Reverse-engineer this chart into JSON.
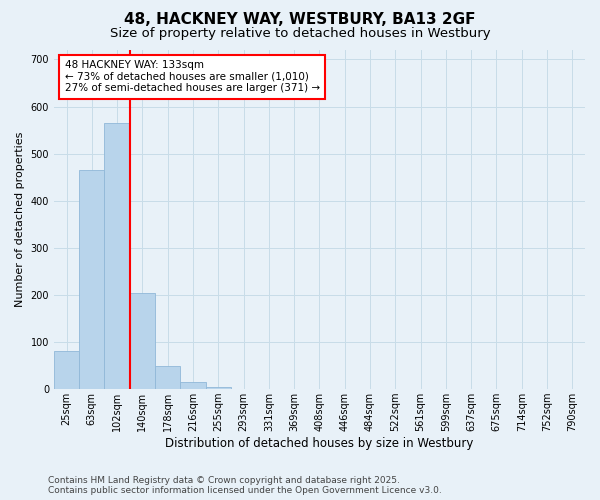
{
  "title1": "48, HACKNEY WAY, WESTBURY, BA13 2GF",
  "title2": "Size of property relative to detached houses in Westbury",
  "xlabel": "Distribution of detached houses by size in Westbury",
  "ylabel": "Number of detached properties",
  "categories": [
    "25sqm",
    "63sqm",
    "102sqm",
    "140sqm",
    "178sqm",
    "216sqm",
    "255sqm",
    "293sqm",
    "331sqm",
    "369sqm",
    "408sqm",
    "446sqm",
    "484sqm",
    "522sqm",
    "561sqm",
    "599sqm",
    "637sqm",
    "675sqm",
    "714sqm",
    "752sqm",
    "790sqm"
  ],
  "values": [
    80,
    465,
    565,
    205,
    50,
    15,
    5,
    0,
    0,
    0,
    0,
    0,
    0,
    0,
    0,
    0,
    0,
    0,
    0,
    0,
    0
  ],
  "bar_color": "#b8d4eb",
  "bar_edge_color": "#90b8d8",
  "grid_color": "#c8dce8",
  "background_color": "#e8f1f8",
  "vline_color": "red",
  "vline_position": 3.0,
  "annotation_text_line1": "48 HACKNEY WAY: 133sqm",
  "annotation_text_line2": "← 73% of detached houses are smaller (1,010)",
  "annotation_text_line3": "27% of semi-detached houses are larger (371) →",
  "annotation_box_color": "white",
  "annotation_box_edge_color": "red",
  "ylim": [
    0,
    720
  ],
  "yticks": [
    0,
    100,
    200,
    300,
    400,
    500,
    600,
    700
  ],
  "footer_line1": "Contains HM Land Registry data © Crown copyright and database right 2025.",
  "footer_line2": "Contains public sector information licensed under the Open Government Licence v3.0.",
  "title1_fontsize": 11,
  "title2_fontsize": 9.5,
  "tick_fontsize": 7,
  "ylabel_fontsize": 8,
  "xlabel_fontsize": 8.5,
  "annotation_fontsize": 7.5,
  "footer_fontsize": 6.5
}
